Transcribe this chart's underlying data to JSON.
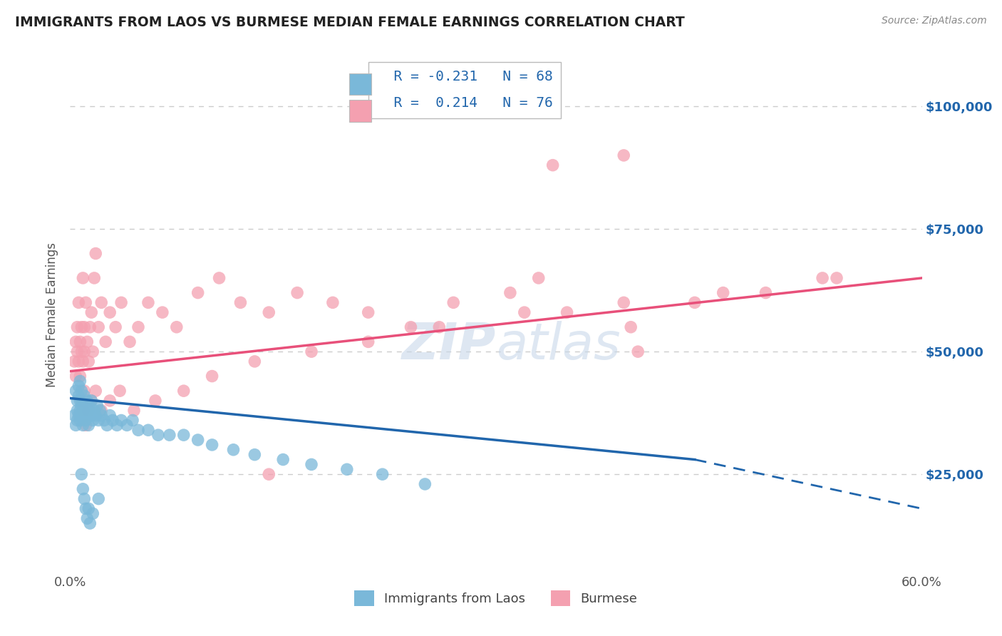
{
  "title": "IMMIGRANTS FROM LAOS VS BURMESE MEDIAN FEMALE EARNINGS CORRELATION CHART",
  "source": "Source: ZipAtlas.com",
  "ylabel": "Median Female Earnings",
  "y_tick_labels": [
    "$25,000",
    "$50,000",
    "$75,000",
    "$100,000"
  ],
  "y_tick_values": [
    25000,
    50000,
    75000,
    100000
  ],
  "x_range": [
    0.0,
    0.6
  ],
  "y_range": [
    5000,
    110000
  ],
  "legend_blue_R": "R = -0.231",
  "legend_blue_N": "N = 68",
  "legend_pink_R": "R =  0.214",
  "legend_pink_N": "N = 76",
  "legend_label_blue": "Immigrants from Laos",
  "legend_label_pink": "Burmese",
  "watermark": "ZIPatlas",
  "blue_color": "#7ab8d9",
  "pink_color": "#f4a0b0",
  "blue_line_color": "#2166ac",
  "pink_line_color": "#e8507a",
  "blue_scatter_x": [
    0.003,
    0.004,
    0.004,
    0.005,
    0.005,
    0.005,
    0.006,
    0.006,
    0.006,
    0.007,
    0.007,
    0.007,
    0.007,
    0.008,
    0.008,
    0.008,
    0.009,
    0.009,
    0.01,
    0.01,
    0.01,
    0.011,
    0.011,
    0.012,
    0.012,
    0.013,
    0.013,
    0.014,
    0.015,
    0.015,
    0.016,
    0.017,
    0.018,
    0.019,
    0.02,
    0.021,
    0.022,
    0.024,
    0.026,
    0.028,
    0.03,
    0.033,
    0.036,
    0.04,
    0.044,
    0.048,
    0.055,
    0.062,
    0.07,
    0.08,
    0.09,
    0.1,
    0.115,
    0.13,
    0.15,
    0.17,
    0.195,
    0.22,
    0.25,
    0.008,
    0.009,
    0.01,
    0.011,
    0.012,
    0.013,
    0.014,
    0.016,
    0.02
  ],
  "blue_scatter_y": [
    37000,
    42000,
    35000,
    40000,
    36000,
    38000,
    41000,
    37000,
    43000,
    38000,
    36000,
    40000,
    44000,
    37000,
    39000,
    42000,
    35000,
    38000,
    37000,
    41000,
    39000,
    38000,
    36000,
    40000,
    37000,
    39000,
    35000,
    38000,
    37000,
    40000,
    36000,
    38000,
    37000,
    39000,
    36000,
    38000,
    37000,
    36000,
    35000,
    37000,
    36000,
    35000,
    36000,
    35000,
    36000,
    34000,
    34000,
    33000,
    33000,
    33000,
    32000,
    31000,
    30000,
    29000,
    28000,
    27000,
    26000,
    25000,
    23000,
    25000,
    22000,
    20000,
    18000,
    16000,
    18000,
    15000,
    17000,
    20000
  ],
  "pink_scatter_x": [
    0.003,
    0.004,
    0.004,
    0.005,
    0.005,
    0.006,
    0.006,
    0.007,
    0.007,
    0.008,
    0.008,
    0.009,
    0.009,
    0.01,
    0.01,
    0.011,
    0.012,
    0.013,
    0.014,
    0.015,
    0.016,
    0.017,
    0.018,
    0.02,
    0.022,
    0.025,
    0.028,
    0.032,
    0.036,
    0.042,
    0.048,
    0.055,
    0.065,
    0.075,
    0.09,
    0.105,
    0.12,
    0.14,
    0.16,
    0.185,
    0.21,
    0.24,
    0.27,
    0.31,
    0.35,
    0.395,
    0.44,
    0.49,
    0.54,
    0.008,
    0.009,
    0.01,
    0.011,
    0.013,
    0.015,
    0.018,
    0.022,
    0.028,
    0.035,
    0.045,
    0.06,
    0.08,
    0.1,
    0.13,
    0.17,
    0.21,
    0.26,
    0.32,
    0.39,
    0.46,
    0.53,
    0.14,
    0.39,
    0.34,
    0.33,
    0.4
  ],
  "pink_scatter_y": [
    48000,
    52000,
    45000,
    50000,
    55000,
    48000,
    60000,
    52000,
    45000,
    55000,
    50000,
    65000,
    48000,
    55000,
    50000,
    60000,
    52000,
    48000,
    55000,
    58000,
    50000,
    65000,
    70000,
    55000,
    60000,
    52000,
    58000,
    55000,
    60000,
    52000,
    55000,
    60000,
    58000,
    55000,
    62000,
    65000,
    60000,
    58000,
    62000,
    60000,
    58000,
    55000,
    60000,
    62000,
    58000,
    55000,
    60000,
    62000,
    65000,
    40000,
    38000,
    42000,
    35000,
    38000,
    40000,
    42000,
    38000,
    40000,
    42000,
    38000,
    40000,
    42000,
    45000,
    48000,
    50000,
    52000,
    55000,
    58000,
    60000,
    62000,
    65000,
    25000,
    90000,
    88000,
    65000,
    50000
  ],
  "blue_line_x": [
    0.0,
    0.44
  ],
  "blue_line_y": [
    40500,
    28000
  ],
  "blue_dashed_line_x": [
    0.44,
    0.6
  ],
  "blue_dashed_line_y": [
    28000,
    18000
  ],
  "pink_line_x": [
    0.0,
    0.6
  ],
  "pink_line_y": [
    46000,
    65000
  ],
  "grid_color": "#cccccc",
  "background_color": "#ffffff"
}
